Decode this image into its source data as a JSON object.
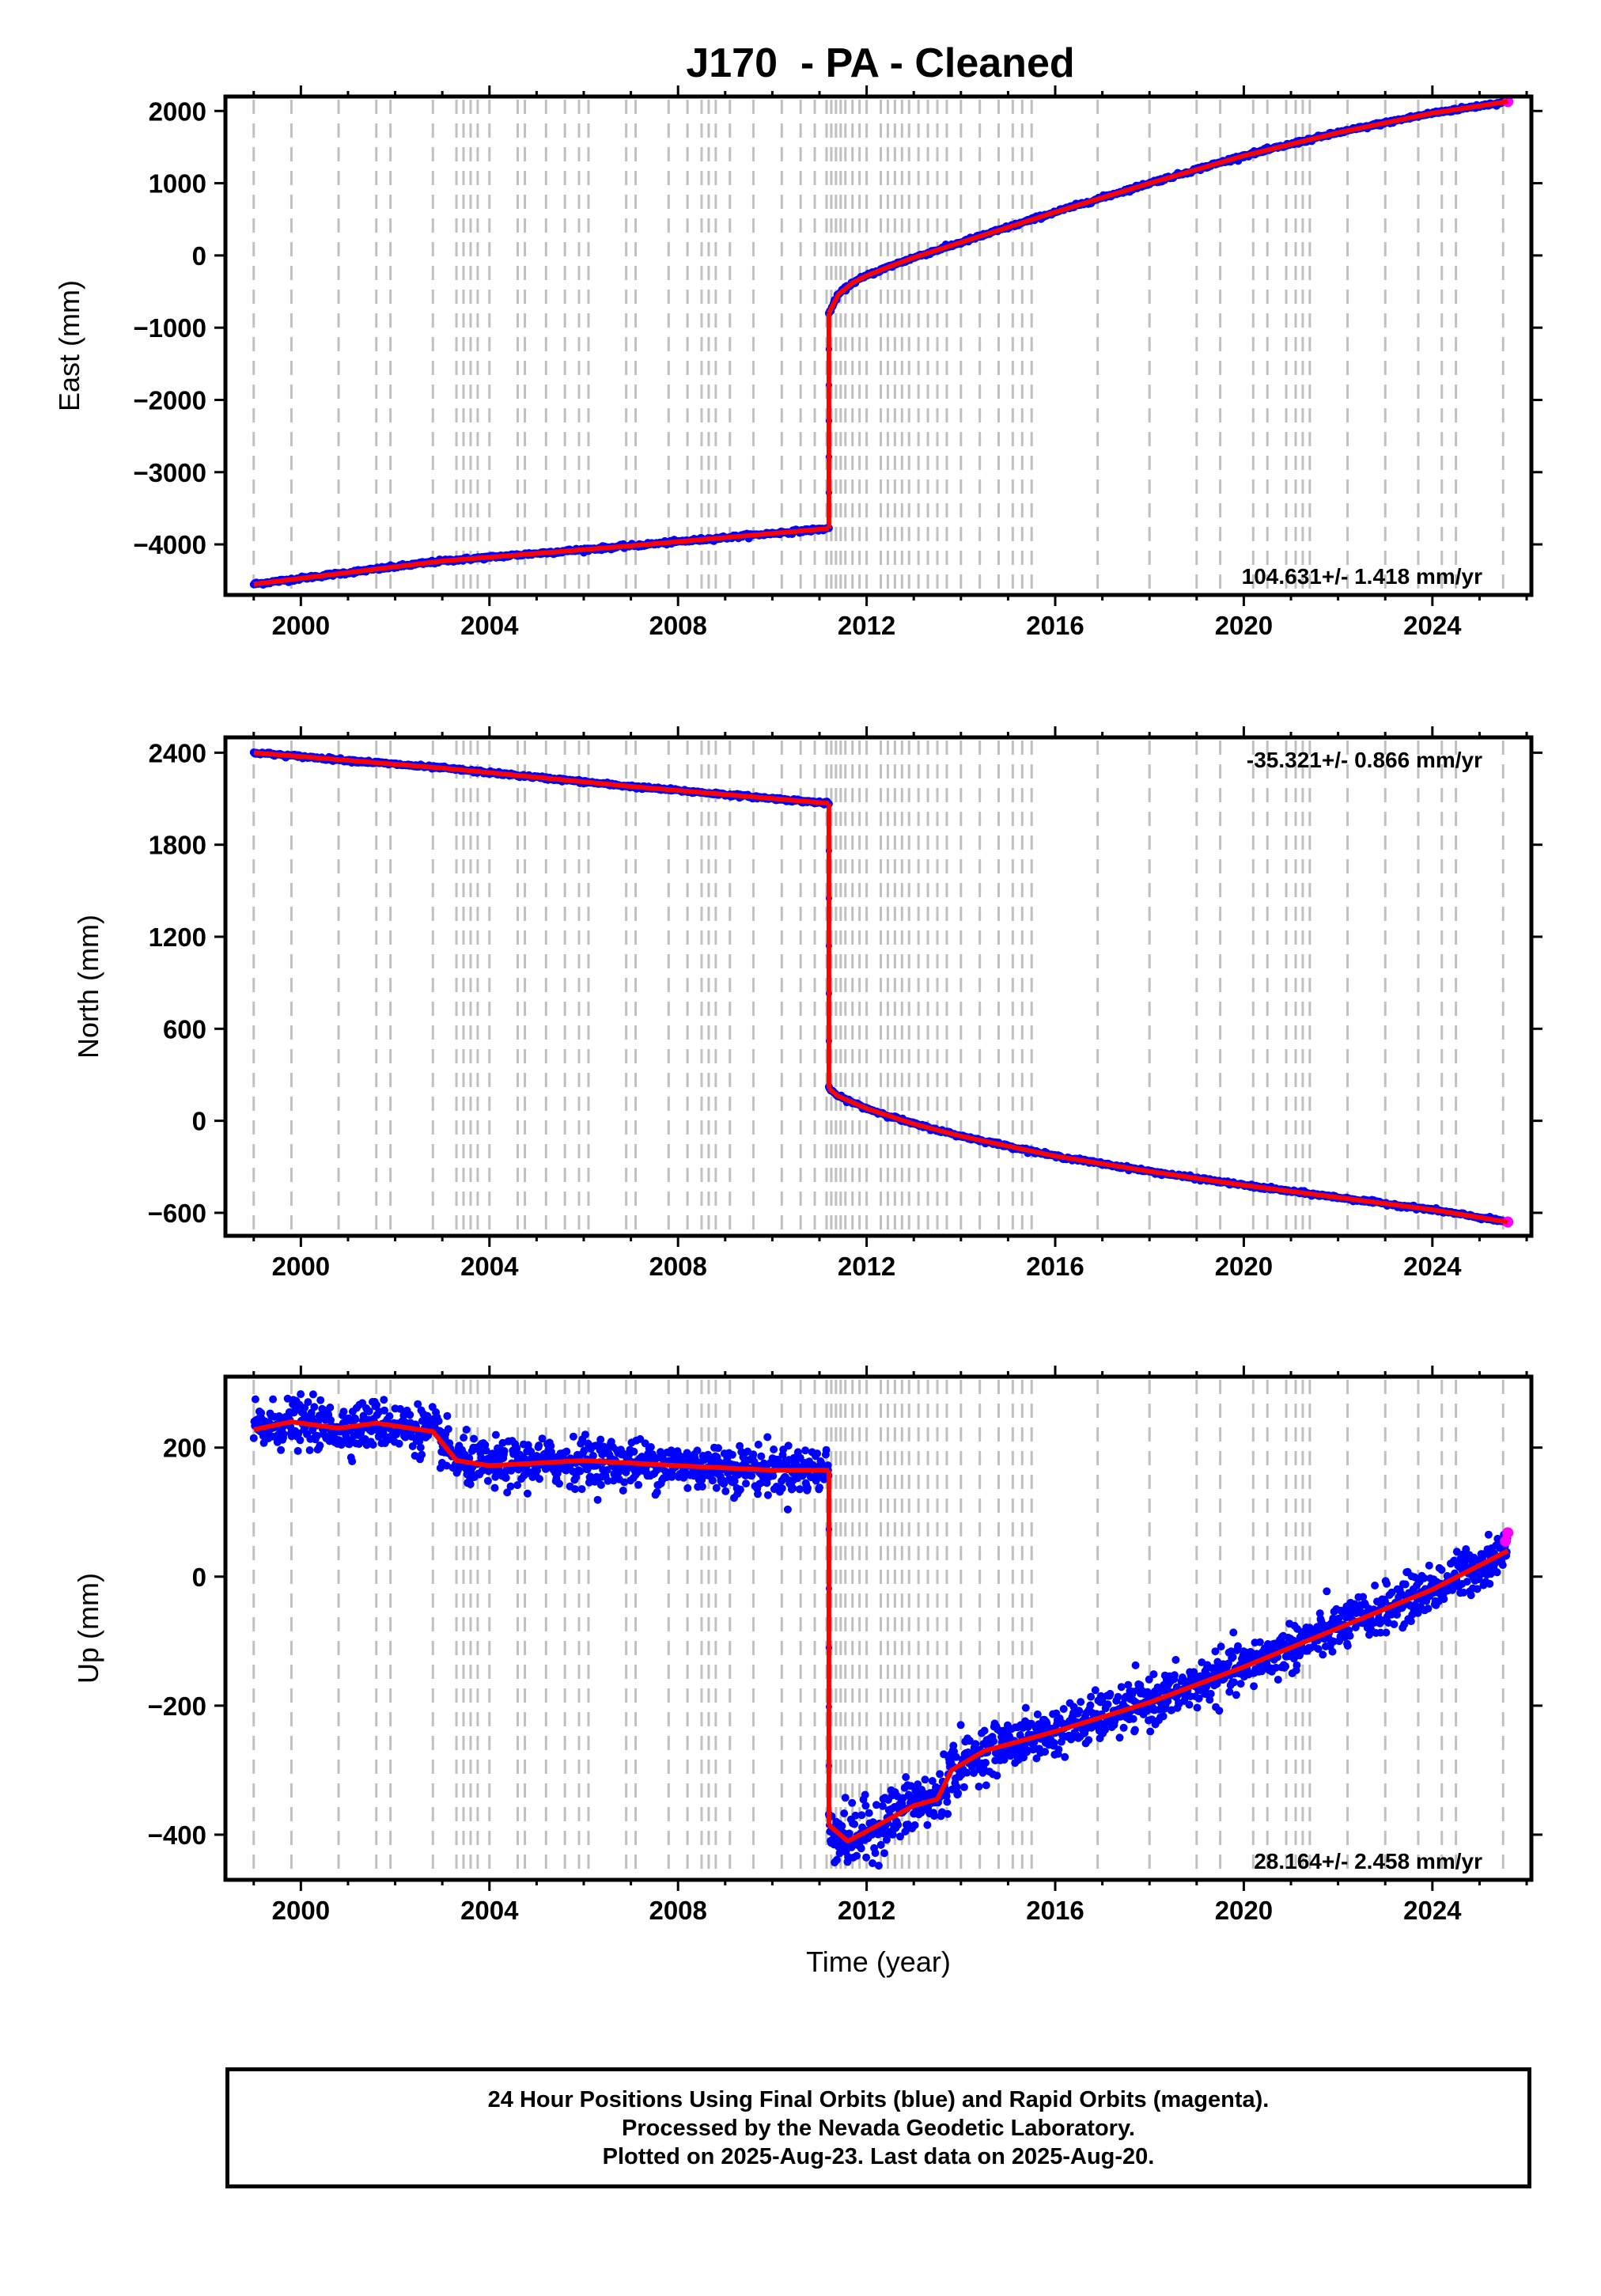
{
  "title": "J170  - PA - Cleaned",
  "footer": {
    "line1": "24 Hour Positions Using Final Orbits (blue) and Rapid Orbits (magenta).",
    "line2": "Processed by the Nevada Geodetic Laboratory.",
    "line3": "Plotted on 2025-Aug-23. Last data on 2025-Aug-20."
  },
  "colors": {
    "final_orbits": "#0000ff",
    "rapid_orbits": "#ff00ff",
    "model": "#ff0000",
    "event_lines": "#c0c0c0"
  },
  "event_years": [
    1999.0,
    1999.8,
    2000.8,
    2001.6,
    2001.9,
    2002.8,
    2003.3,
    2003.45,
    2003.6,
    2003.75,
    2004.0,
    2004.6,
    2004.75,
    2005.2,
    2005.6,
    2005.9,
    2006.1,
    2006.9,
    2007.1,
    2007.8,
    2008.2,
    2008.5,
    2008.65,
    2008.8,
    2009.1,
    2009.6,
    2010.2,
    2010.6,
    2010.9,
    2011.15,
    2011.25,
    2011.35,
    2011.45,
    2011.55,
    2011.7,
    2011.85,
    2012.0,
    2012.3,
    2012.45,
    2012.6,
    2012.75,
    2012.9,
    2013.1,
    2013.3,
    2013.5,
    2013.7,
    2014.0,
    2014.4,
    2014.8,
    2015.1,
    2015.3,
    2015.5,
    2016.9,
    2018.0,
    2019.0,
    2019.5,
    2020.2,
    2020.5,
    2020.9,
    2021.1,
    2021.25,
    2021.4,
    2022.2,
    2023.0,
    2023.7,
    2024.2,
    2024.5,
    2025.5
  ],
  "chart_data": [
    {
      "type": "scatter",
      "id": "east",
      "ylabel": "East (mm)",
      "xlabel": "",
      "xlim": [
        1998.4,
        2026.1
      ],
      "ylim": [
        -4700,
        2200
      ],
      "xticks": [
        2000,
        2004,
        2008,
        2012,
        2016,
        2020,
        2024
      ],
      "yticks": [
        -4000,
        -3000,
        -2000,
        -1000,
        0,
        1000,
        2000
      ],
      "rate_label": "104.631+/- 1.418 mm/yr",
      "rate_position": "bottom-right",
      "series": [
        {
          "x": [
            1999.0,
            2003.0,
            2007.0,
            2011.2
          ],
          "y": [
            -4550,
            -4230,
            -4020,
            -3780
          ]
        },
        {
          "x": [
            2011.2,
            2011.2
          ],
          "y": [
            -3780,
            -800
          ]
        },
        {
          "x": [
            2011.2,
            2011.4,
            2011.7,
            2012.0,
            2012.5,
            2013.0,
            2014.0,
            2015.0,
            2016.0,
            2018.0,
            2020.0,
            2022.0,
            2024.0,
            2025.6
          ],
          "y": [
            -800,
            -540,
            -380,
            -280,
            -150,
            -30,
            180,
            390,
            600,
            1000,
            1380,
            1700,
            1970,
            2130
          ]
        }
      ]
    },
    {
      "type": "scatter",
      "id": "north",
      "ylabel": "North (mm)",
      "xlabel": "",
      "xlim": [
        1998.4,
        2026.1
      ],
      "ylim": [
        -750,
        2500
      ],
      "xticks": [
        2000,
        2004,
        2008,
        2012,
        2016,
        2020,
        2024
      ],
      "yticks": [
        -600,
        0,
        600,
        1200,
        1800,
        2400
      ],
      "rate_label": "-35.321+/- 0.866 mm/yr",
      "rate_position": "top-right",
      "series": [
        {
          "x": [
            1999.0,
            2003.0,
            2007.0,
            2011.2
          ],
          "y": [
            2400,
            2300,
            2180,
            2070
          ]
        },
        {
          "x": [
            2011.2,
            2011.2
          ],
          "y": [
            2070,
            210
          ]
        },
        {
          "x": [
            2011.2,
            2011.4,
            2012.0,
            2013.0,
            2014.0,
            2016.0,
            2018.0,
            2020.0,
            2022.0,
            2024.0,
            2025.6
          ],
          "y": [
            210,
            160,
            80,
            -20,
            -100,
            -230,
            -330,
            -420,
            -500,
            -580,
            -660
          ]
        }
      ]
    },
    {
      "type": "scatter",
      "id": "up",
      "ylabel": "Up (mm)",
      "xlabel": "Time (year)",
      "xlim": [
        1998.4,
        2026.1
      ],
      "ylim": [
        -470,
        310
      ],
      "xticks": [
        2000,
        2004,
        2008,
        2012,
        2016,
        2020,
        2024
      ],
      "yticks": [
        -400,
        -200,
        0,
        200
      ],
      "rate_label": "28.164+/- 2.458 mm/yr",
      "rate_position": "bottom-right",
      "series": [
        {
          "x": [
            1999.0,
            1999.8,
            2000.8,
            2001.6,
            2002.8,
            2003.3,
            2004.0,
            2006.0,
            2008.0,
            2010.0,
            2011.2
          ],
          "y": [
            228,
            240,
            230,
            238,
            225,
            180,
            172,
            180,
            172,
            165,
            165
          ]
        },
        {
          "x": [
            2011.2,
            2011.2
          ],
          "y": [
            165,
            -385
          ]
        },
        {
          "x": [
            2011.2,
            2011.6,
            2012.0,
            2012.5,
            2013.0,
            2013.5,
            2013.8,
            2014.5,
            2016.0,
            2018.0,
            2020.0,
            2022.0,
            2024.0,
            2025.6
          ],
          "y": [
            -385,
            -410,
            -395,
            -375,
            -355,
            -345,
            -300,
            -270,
            -240,
            -195,
            -140,
            -80,
            -20,
            40
          ]
        }
      ],
      "rapid": {
        "x": [
          2025.55,
          2025.6
        ],
        "y": [
          55,
          68
        ]
      }
    }
  ]
}
